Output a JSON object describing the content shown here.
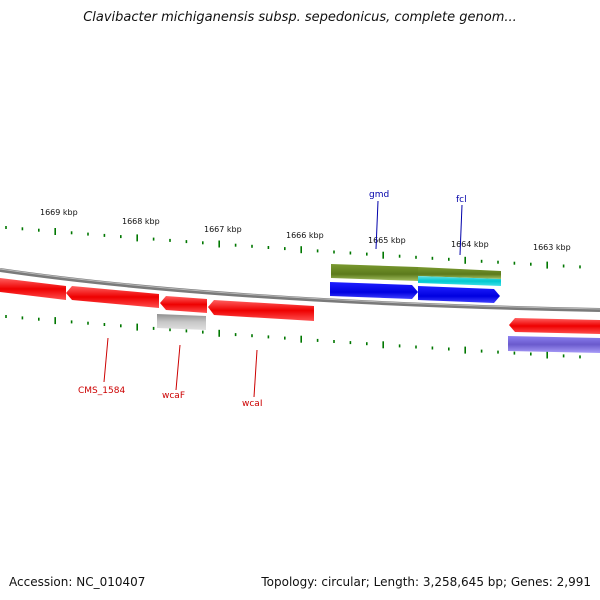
{
  "title": "Clavibacter michiganensis subsp. sepedonicus, complete genom...",
  "footer": {
    "accession": "Accession: NC_010407",
    "summary": "Topology: circular; Length: 3,258,645 bp; Genes: 2,991"
  },
  "kbp_labels": [
    "1669 kbp",
    "1668 kbp",
    "1667 kbp",
    "1666 kbp",
    "1665 kbp",
    "1664 kbp",
    "1663 kbp"
  ],
  "genes": [
    {
      "id": "gene-cms1584",
      "label": "CMS_1584",
      "color": "#cc0000"
    },
    {
      "id": "gene-wcaf",
      "label": "wcaF",
      "color": "#cc0000"
    },
    {
      "id": "gene-wcai",
      "label": "wcaI",
      "color": "#cc0000"
    },
    {
      "id": "gene-gmd",
      "label": "gmd",
      "color": "#0000aa"
    },
    {
      "id": "gene-fcl",
      "label": "fcl",
      "color": "#0000aa"
    }
  ],
  "colors": {
    "backbone": "#888888",
    "tick": "#007700",
    "red_gene": "#ff0000",
    "grey_gene": "#b0b0b0",
    "olive_gene": "#6b8e23",
    "cyan_gene": "#00cccc",
    "blue_gene": "#0000ee",
    "purple_gene": "#7b68ee"
  }
}
